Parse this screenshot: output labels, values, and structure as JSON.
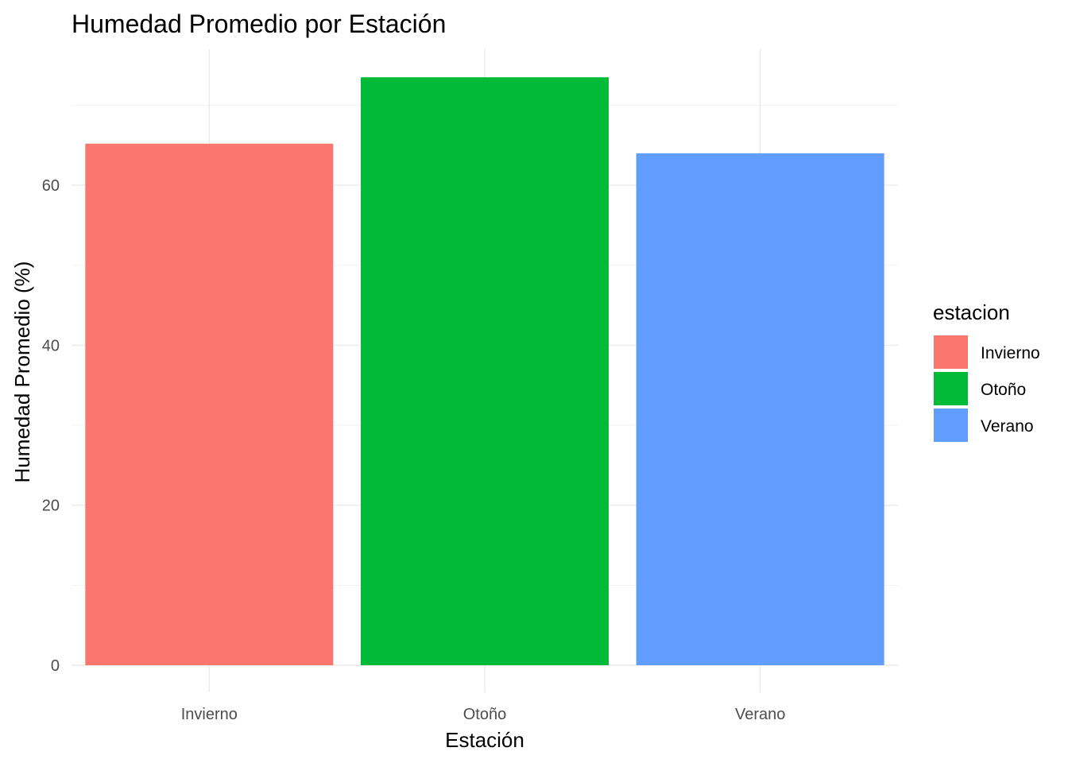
{
  "chart_data": {
    "type": "bar",
    "title": "Humedad Promedio por Estación",
    "xlabel": "Estación",
    "ylabel": "Humedad Promedio (%)",
    "categories": [
      "Invierno",
      "Otoño",
      "Verano"
    ],
    "values": [
      65.2,
      73.5,
      64.0
    ],
    "colors": [
      "#F8766D",
      "#00BA38",
      "#619CFF"
    ],
    "ylim": [
      0,
      77
    ],
    "yticks": [
      0,
      20,
      40,
      60
    ],
    "ytick_labels": [
      "0",
      "20",
      "40",
      "60"
    ],
    "minor_yticks": [
      10,
      30,
      50,
      70
    ],
    "grid": true,
    "legend": {
      "title": "estacion",
      "position": "right",
      "entries": [
        "Invierno",
        "Otoño",
        "Verano"
      ]
    }
  }
}
